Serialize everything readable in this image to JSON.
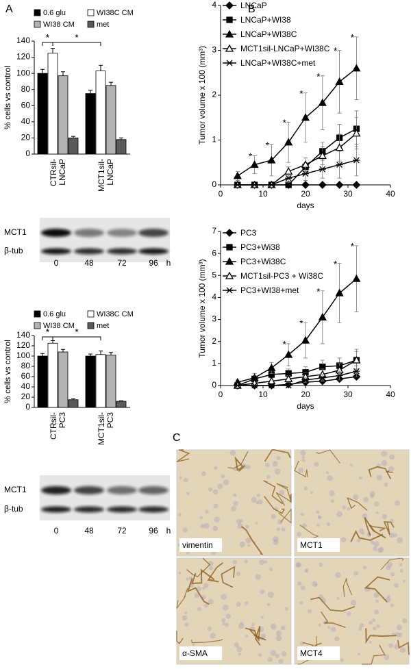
{
  "panel_labels": [
    "A",
    "B",
    "C"
  ],
  "chart_data": [
    {
      "type": "bar",
      "ylabel": "% cells vs control",
      "categories": [
        "CTRsil-\nLNCaP",
        "MCT1sil-\nLNCaP"
      ],
      "series": [
        {
          "name": "0.6 glu",
          "color": "#000000",
          "values": [
            100,
            75
          ],
          "errors": [
            5,
            4
          ]
        },
        {
          "name": "WI38C CM",
          "color": "#ffffff",
          "values": [
            125,
            103
          ],
          "errors": [
            6,
            7
          ]
        },
        {
          "name": "WI38 CM",
          "color": "#b3b3b3",
          "values": [
            97,
            85
          ],
          "errors": [
            5,
            4
          ]
        },
        {
          "name": "met",
          "color": "#595959",
          "values": [
            20,
            18
          ],
          "errors": [
            2,
            2
          ]
        }
      ],
      "ylim": [
        0,
        140
      ],
      "yticks": [
        0,
        20,
        40,
        60,
        80,
        100,
        120,
        140
      ],
      "annotations": [
        "*",
        "*"
      ]
    },
    {
      "type": "line",
      "ylabel": "Tumor volume x 100  (mm³)",
      "xlabel": "days",
      "x": [
        4,
        8,
        12,
        16,
        20,
        24,
        28,
        32
      ],
      "series": [
        {
          "name": "LNCaP",
          "color": "#000000",
          "marker": "diamond",
          "values": [
            0,
            0,
            0,
            0,
            0,
            0,
            0,
            0
          ],
          "errors": [
            0,
            0,
            0,
            0,
            0,
            0,
            0,
            0
          ]
        },
        {
          "name": "LNCaP+WI38",
          "color": "#000000",
          "marker": "square",
          "values": [
            0,
            0,
            0,
            0,
            0.4,
            0.75,
            1.05,
            1.25
          ],
          "errors": [
            0,
            0,
            0,
            0,
            0.1,
            0.2,
            0.3,
            0.4
          ]
        },
        {
          "name": "LNCaP+WI38C",
          "color": "#000000",
          "marker": "triangle",
          "values": [
            0.2,
            0.45,
            0.55,
            0.95,
            1.5,
            1.83,
            2.3,
            2.6
          ],
          "errors": [
            0.1,
            0.2,
            0.35,
            0.45,
            0.55,
            0.6,
            0.7,
            0.7
          ]
        },
        {
          "name": "MCT1sil-LNCaP+WI38C",
          "color": "#000000",
          "marker": "open-triangle",
          "values": [
            0,
            0,
            0,
            0.3,
            0.45,
            0.65,
            0.83,
            1.15
          ],
          "errors": [
            0,
            0,
            0,
            0.1,
            0.15,
            0.2,
            0.3,
            0.35
          ]
        },
        {
          "name": "LNCaP+WI38C+met",
          "color": "#000000",
          "marker": "asterisk",
          "values": [
            0,
            0,
            0,
            0.15,
            0.25,
            0.35,
            0.45,
            0.55
          ],
          "errors": [
            0,
            0,
            0,
            0.1,
            0.15,
            0.2,
            0.3,
            0.35
          ]
        }
      ],
      "xlim": [
        0,
        40
      ],
      "xticks": [
        0,
        10,
        20,
        30,
        40
      ],
      "ylim": [
        0,
        4
      ],
      "yticks": [
        0,
        1,
        2,
        3,
        4
      ],
      "significance": {
        "label": "*",
        "x": [
          8,
          12,
          16,
          20,
          24,
          28,
          32
        ]
      }
    },
    {
      "type": "bar",
      "ylabel": "% cells vs control",
      "categories": [
        "CTRsil-\nPC3",
        "MCT1sil-\nPC3"
      ],
      "series": [
        {
          "name": "0.6 glu",
          "color": "#000000",
          "values": [
            100,
            100
          ],
          "errors": [
            5,
            4
          ]
        },
        {
          "name": "WI38C CM",
          "color": "#ffffff",
          "values": [
            125,
            103
          ],
          "errors": [
            5,
            7
          ]
        },
        {
          "name": "WI38 CM",
          "color": "#b3b3b3",
          "values": [
            108,
            102
          ],
          "errors": [
            5,
            5
          ]
        },
        {
          "name": "met",
          "color": "#595959",
          "values": [
            15,
            12
          ],
          "errors": [
            2,
            1
          ]
        }
      ],
      "ylim": [
        0,
        140
      ],
      "yticks": [
        0,
        20,
        40,
        60,
        80,
        100,
        120,
        140
      ],
      "annotations": [
        "*",
        "*"
      ]
    },
    {
      "type": "line",
      "ylabel": "Tumor volume x 100  (mm³)",
      "xlabel": "days",
      "x": [
        4,
        8,
        12,
        16,
        20,
        24,
        28,
        32
      ],
      "series": [
        {
          "name": "PC3",
          "color": "#000000",
          "marker": "diamond",
          "values": [
            0,
            0,
            0,
            0.05,
            0.15,
            0.2,
            0.3,
            0.4
          ],
          "errors": [
            0,
            0,
            0,
            0.05,
            0.05,
            0.1,
            0.1,
            0.1
          ]
        },
        {
          "name": "PC3+Wi38",
          "color": "#000000",
          "marker": "square",
          "values": [
            0,
            0.3,
            0.5,
            0.55,
            0.6,
            0.85,
            0.9,
            1.15
          ],
          "errors": [
            0,
            0.1,
            0.15,
            0.2,
            0.25,
            0.3,
            0.35,
            0.5
          ]
        },
        {
          "name": "PC3+Wi38C",
          "color": "#000000",
          "marker": "triangle",
          "values": [
            0.15,
            0.35,
            0.8,
            1.4,
            2.05,
            3.1,
            4.2,
            4.85
          ],
          "errors": [
            0.1,
            0.2,
            0.25,
            0.5,
            0.8,
            1.2,
            1.35,
            1.5
          ]
        },
        {
          "name": "MCT1sil-PC3 + Wi38C",
          "color": "#000000",
          "marker": "open-triangle",
          "values": [
            0,
            0.1,
            0.2,
            0.3,
            0.4,
            0.5,
            0.7,
            1.15
          ],
          "errors": [
            0,
            0.05,
            0.1,
            0.15,
            0.2,
            0.25,
            0.3,
            0.4
          ]
        },
        {
          "name": "PC3+WI38+met",
          "color": "#000000",
          "marker": "asterisk",
          "values": [
            0,
            0,
            0,
            0,
            0.25,
            0.35,
            0.45,
            0.65
          ],
          "errors": [
            0,
            0,
            0,
            0,
            0.1,
            0.15,
            0.2,
            0.25
          ]
        }
      ],
      "xlim": [
        0,
        40
      ],
      "xticks": [
        0,
        10,
        20,
        30,
        40
      ],
      "ylim": [
        0,
        7
      ],
      "yticks": [
        0,
        1,
        2,
        3,
        4,
        5,
        6,
        7
      ],
      "significance": {
        "label": "*",
        "x": [
          16,
          20,
          24,
          28,
          32
        ]
      }
    }
  ],
  "blots": [
    {
      "rows": [
        "MCT1",
        "β-tub"
      ],
      "lanes": [
        "0",
        "48",
        "72",
        "96"
      ],
      "unit": "h"
    },
    {
      "rows": [
        "MCT1",
        "β-tub"
      ],
      "lanes": [
        "0",
        "48",
        "72",
        "96"
      ],
      "unit": "h"
    }
  ],
  "panel_c": {
    "images": [
      "vimentin",
      "MCT1",
      "α-SMA",
      "MCT4"
    ]
  }
}
